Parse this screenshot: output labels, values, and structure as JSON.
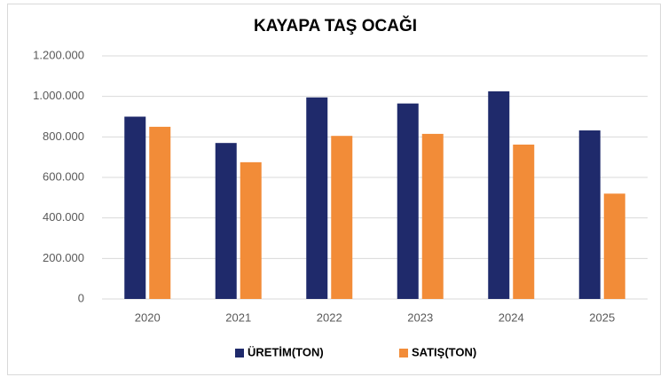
{
  "chart_data": {
    "type": "bar",
    "title": "KAYAPA TAŞ OCAĞI",
    "categories": [
      "2020",
      "2021",
      "2022",
      "2023",
      "2024",
      "2025"
    ],
    "series": [
      {
        "name": "ÜRETİM(TON)",
        "color": "#1f2a6b",
        "values": [
          900000,
          770000,
          995000,
          965000,
          1025000,
          832000
        ]
      },
      {
        "name": "SATIŞ(TON)",
        "color": "#f28c38",
        "values": [
          850000,
          675000,
          805000,
          815000,
          762000,
          520000
        ]
      }
    ],
    "ylim": [
      0,
      1200000
    ],
    "yticks": [
      0,
      {
        "value": 200000,
        "label": "200.000"
      },
      {
        "value": 400000,
        "label": "400.000"
      },
      {
        "value": 600000,
        "label": "600.000"
      },
      {
        "value": 800000,
        "label": "800.000"
      },
      {
        "value": 1000000,
        "label": "1.000.000"
      },
      {
        "value": 1200000,
        "label": "1.200.000"
      }
    ],
    "grid": true,
    "legend": "bottom"
  }
}
